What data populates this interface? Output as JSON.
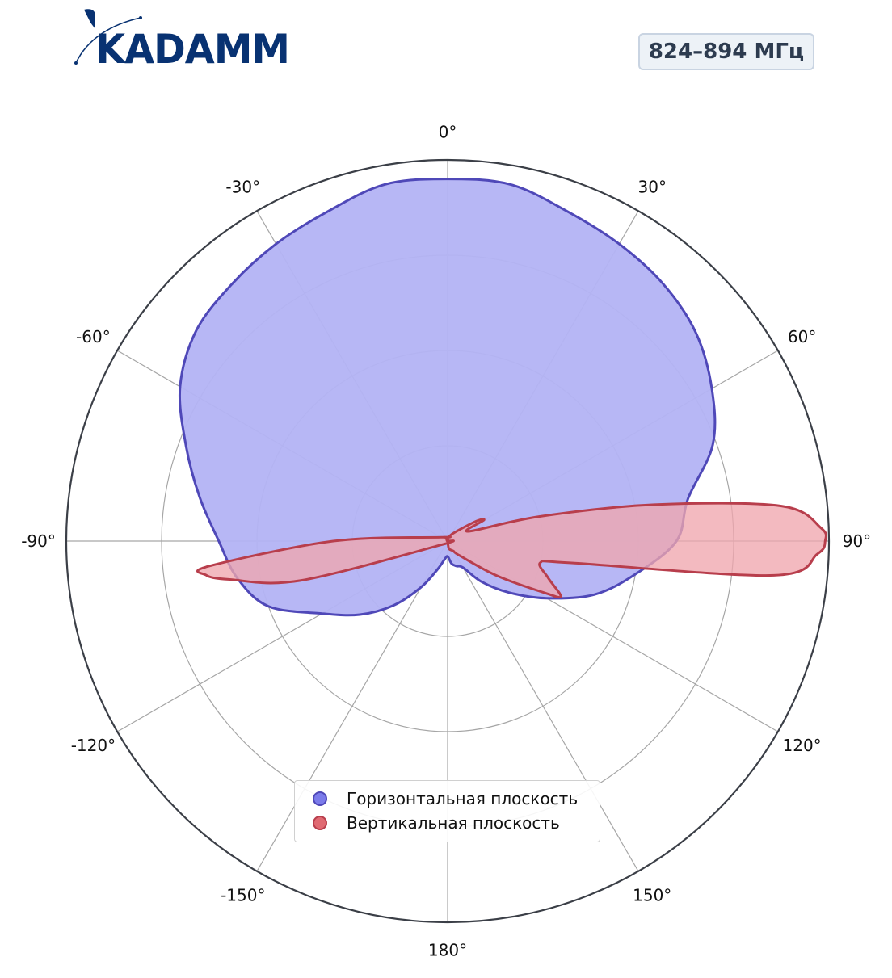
{
  "brand": {
    "name": "KADAMM",
    "color": "#083272"
  },
  "frequency_label": "824–894 МГц",
  "chart_data": {
    "type": "polar",
    "title": "",
    "angle_unit": "deg",
    "direction": "clockwise",
    "zero_location": "top",
    "radial_grid": [
      0.25,
      0.5,
      0.75,
      1.0
    ],
    "angular_ticks": [
      {
        "angle": 0,
        "label": "0°"
      },
      {
        "angle": 30,
        "label": "30°"
      },
      {
        "angle": 60,
        "label": "60°"
      },
      {
        "angle": 90,
        "label": "90°"
      },
      {
        "angle": 120,
        "label": "120°"
      },
      {
        "angle": 150,
        "label": "150°"
      },
      {
        "angle": 180,
        "label": "180°"
      },
      {
        "angle": -150,
        "label": "-150°"
      },
      {
        "angle": -120,
        "label": "-120°"
      },
      {
        "angle": -90,
        "label": "-90°"
      },
      {
        "angle": -60,
        "label": "-60°"
      },
      {
        "angle": -30,
        "label": "-30°"
      }
    ],
    "legend_position": "lower-center",
    "series": [
      {
        "name": "Горизонтальная плоскость",
        "line_color": "#4f48b8",
        "fill_color": "#b3b3f4",
        "marker_color": "#7b7bea",
        "points": [
          [
            0,
            0.95
          ],
          [
            10,
            0.95
          ],
          [
            20,
            0.92
          ],
          [
            30,
            0.9
          ],
          [
            40,
            0.88
          ],
          [
            50,
            0.85
          ],
          [
            60,
            0.8
          ],
          [
            70,
            0.74
          ],
          [
            80,
            0.64
          ],
          [
            90,
            0.6
          ],
          [
            100,
            0.5
          ],
          [
            110,
            0.41
          ],
          [
            120,
            0.3
          ],
          [
            130,
            0.21
          ],
          [
            140,
            0.14
          ],
          [
            150,
            0.08
          ],
          [
            160,
            0.07
          ],
          [
            170,
            0.06
          ],
          [
            180,
            0.04
          ],
          [
            -170,
            0.05
          ],
          [
            -160,
            0.08
          ],
          [
            -150,
            0.14
          ],
          [
            -140,
            0.22
          ],
          [
            -130,
            0.3
          ],
          [
            -120,
            0.38
          ],
          [
            -110,
            0.5
          ],
          [
            -100,
            0.56
          ],
          [
            -90,
            0.6
          ],
          [
            -80,
            0.66
          ],
          [
            -70,
            0.73
          ],
          [
            -60,
            0.81
          ],
          [
            -50,
            0.86
          ],
          [
            -40,
            0.88
          ],
          [
            -30,
            0.9
          ],
          [
            -20,
            0.92
          ],
          [
            -10,
            0.95
          ]
        ]
      },
      {
        "name": "Вертикальная плоскость",
        "line_color": "#b83e4c",
        "fill_color": "#f0a6ae",
        "marker_color": "#e06a72",
        "points": [
          [
            0,
            0.0
          ],
          [
            30,
            0.02
          ],
          [
            55,
            0.09
          ],
          [
            60,
            0.11
          ],
          [
            65,
            0.06
          ],
          [
            75,
            0.25
          ],
          [
            80,
            0.55
          ],
          [
            84,
            0.88
          ],
          [
            88,
            0.98
          ],
          [
            90,
            0.99
          ],
          [
            92,
            0.97
          ],
          [
            96,
            0.86
          ],
          [
            100,
            0.33
          ],
          [
            103,
            0.25
          ],
          [
            110,
            0.28
          ],
          [
            116,
            0.33
          ],
          [
            118,
            0.29
          ],
          [
            125,
            0.16
          ],
          [
            140,
            0.05
          ],
          [
            150,
            0.03
          ],
          [
            170,
            0.02
          ],
          [
            180,
            0.0
          ],
          [
            -150,
            0.0
          ],
          [
            -120,
            0.02
          ],
          [
            -105,
            0.4
          ],
          [
            -100,
            0.58
          ],
          [
            -98,
            0.64
          ],
          [
            -96,
            0.63
          ],
          [
            -90,
            0.3
          ],
          [
            -60,
            0.02
          ],
          [
            -30,
            0.01
          ]
        ]
      }
    ]
  }
}
